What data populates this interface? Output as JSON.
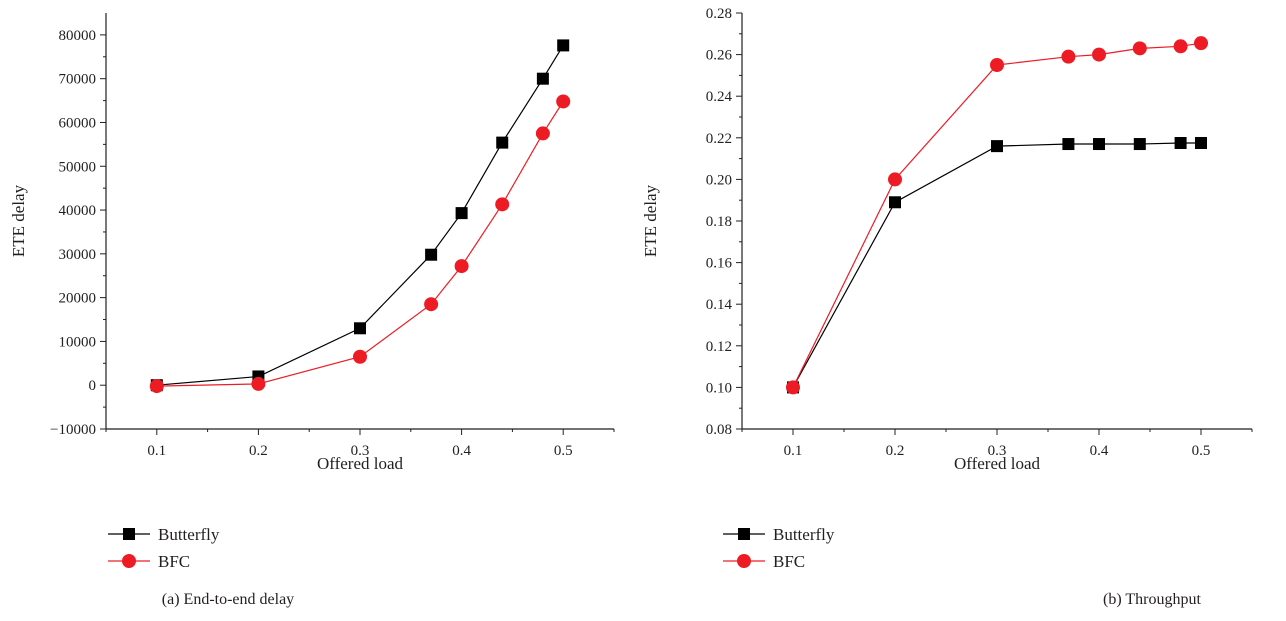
{
  "chart_data": [
    {
      "type": "line",
      "caption": "(a)  End-to-end delay",
      "xlabel": "Offered load",
      "ylabel": "ETE delay",
      "xlim": [
        0.05,
        0.55
      ],
      "ylim": [
        -10000,
        85000
      ],
      "xticks": [
        0.1,
        0.2,
        0.3,
        0.4,
        0.5
      ],
      "xtick_labels": [
        "0.1",
        "0.2",
        "0.3",
        "0.4",
        "0.5"
      ],
      "yticks": [
        -10000,
        0,
        10000,
        20000,
        30000,
        40000,
        50000,
        60000,
        70000,
        80000
      ],
      "ytick_labels": [
        "−10000",
        "0",
        "10000",
        "20000",
        "30000",
        "40000",
        "50000",
        "60000",
        "70000",
        "80000"
      ],
      "grid": false,
      "legend_position": "below",
      "series": [
        {
          "name": "Butterfly",
          "marker": "square",
          "color": "#000000",
          "x": [
            0.1,
            0.2,
            0.3,
            0.37,
            0.4,
            0.44,
            0.48,
            0.5
          ],
          "y": [
            0,
            2000,
            13000,
            29800,
            39300,
            55400,
            70000,
            77600
          ]
        },
        {
          "name": "BFC",
          "marker": "circle",
          "color": "#ed1c24",
          "x": [
            0.1,
            0.2,
            0.3,
            0.37,
            0.4,
            0.44,
            0.48,
            0.5
          ],
          "y": [
            -200,
            300,
            6500,
            18500,
            27200,
            41300,
            57500,
            64800
          ]
        }
      ]
    },
    {
      "type": "line",
      "caption": "(b)  Throughput",
      "xlabel": "Offered load",
      "ylabel": "ETE delay",
      "xlim": [
        0.05,
        0.55
      ],
      "ylim": [
        0.08,
        0.28
      ],
      "xticks": [
        0.1,
        0.2,
        0.3,
        0.4,
        0.5
      ],
      "xtick_labels": [
        "0.1",
        "0.2",
        "0.3",
        "0.4",
        "0.5"
      ],
      "yticks": [
        0.08,
        0.1,
        0.12,
        0.14,
        0.16,
        0.18,
        0.2,
        0.22,
        0.24,
        0.26,
        0.28
      ],
      "ytick_labels": [
        "0.08",
        "0.10",
        "0.12",
        "0.14",
        "0.16",
        "0.18",
        "0.20",
        "0.22",
        "0.24",
        "0.26",
        "0.28"
      ],
      "grid": false,
      "legend_position": "below",
      "series": [
        {
          "name": "Butterfly",
          "marker": "square",
          "color": "#000000",
          "x": [
            0.1,
            0.2,
            0.3,
            0.37,
            0.4,
            0.44,
            0.48,
            0.5
          ],
          "y": [
            0.1,
            0.189,
            0.216,
            0.217,
            0.217,
            0.217,
            0.2175,
            0.2175
          ]
        },
        {
          "name": "BFC",
          "marker": "circle",
          "color": "#ed1c24",
          "x": [
            0.1,
            0.2,
            0.3,
            0.37,
            0.4,
            0.44,
            0.48,
            0.5
          ],
          "y": [
            0.1,
            0.2,
            0.255,
            0.259,
            0.26,
            0.263,
            0.264,
            0.2655
          ]
        }
      ]
    }
  ]
}
